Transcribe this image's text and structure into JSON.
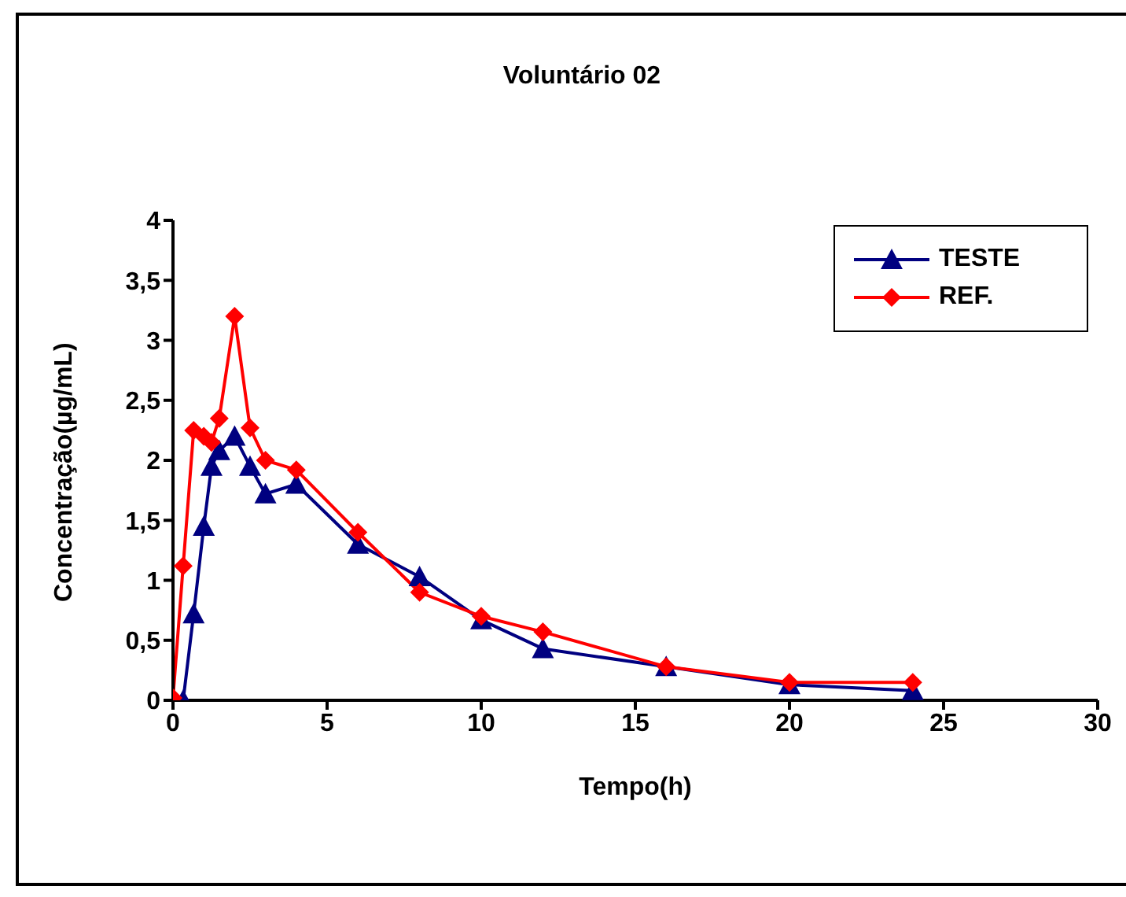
{
  "chart_data": {
    "type": "line",
    "title": "Voluntário 02",
    "xlabel": "Tempo(h)",
    "ylabel": "Concentração(µg/mL)",
    "x": [
      0,
      0.33,
      0.67,
      1,
      1.25,
      1.5,
      2,
      2.5,
      3,
      4,
      6,
      8,
      10,
      12,
      16,
      20,
      24
    ],
    "series": [
      {
        "name": "TESTE",
        "color": "#000080",
        "marker": "triangle",
        "values": [
          0,
          0,
          0.72,
          1.45,
          1.95,
          2.08,
          2.2,
          1.95,
          1.72,
          1.8,
          1.3,
          1.03,
          0.67,
          0.43,
          0.28,
          0.13,
          0.08
        ]
      },
      {
        "name": "REF.",
        "color": "#ff0000",
        "marker": "diamond",
        "values": [
          0.02,
          1.12,
          2.25,
          2.2,
          2.15,
          2.35,
          3.2,
          2.27,
          2.0,
          1.92,
          1.4,
          0.9,
          0.7,
          0.57,
          0.28,
          0.15,
          0.15
        ]
      }
    ],
    "xlim": [
      0,
      30
    ],
    "xticks": [
      0,
      5,
      10,
      15,
      20,
      25,
      30
    ],
    "ylim": [
      0,
      4
    ],
    "yticks": [
      {
        "value": 0,
        "label": "0"
      },
      {
        "value": 0.5,
        "label": "0,5"
      },
      {
        "value": 1,
        "label": "1"
      },
      {
        "value": 1.5,
        "label": "1,5"
      },
      {
        "value": 2,
        "label": "2"
      },
      {
        "value": 2.5,
        "label": "2,5"
      },
      {
        "value": 3,
        "label": "3"
      },
      {
        "value": 3.5,
        "label": "3,5"
      },
      {
        "value": 4,
        "label": "4"
      }
    ],
    "grid": false,
    "legend": "top right",
    "line_style": "solid"
  }
}
